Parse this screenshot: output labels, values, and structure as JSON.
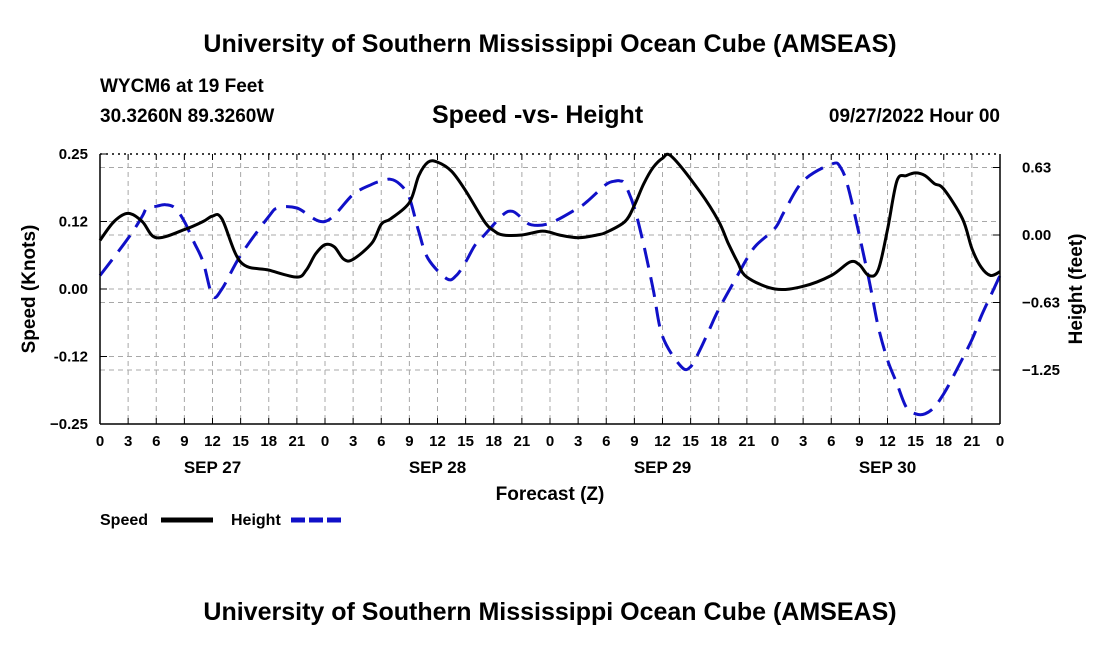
{
  "header": {
    "title": "University of Southern Mississippi Ocean Cube (AMSEAS)",
    "station": "WYCM6 at 19 Feet",
    "coords": "30.3260N  89.3260W",
    "subtitle": "Speed -vs- Height",
    "datetime": "09/27/2022 Hour 00"
  },
  "footer": {
    "title": "University of Southern Mississippi Ocean Cube (AMSEAS)"
  },
  "colors": {
    "speed": "#000000",
    "height": "#1010c8",
    "grid": "#a8a8a8"
  },
  "chart_data": {
    "type": "line",
    "xlabel": "Forecast (Z)",
    "ylabel": "Speed (Knots)",
    "y2label": "Height (feet)",
    "xlim": [
      0,
      96
    ],
    "ylim": [
      -0.25,
      0.25
    ],
    "y2lim": [
      -1.75,
      0.75
    ],
    "x_tick_labels": [
      "0",
      "3",
      "6",
      "9",
      "12",
      "15",
      "18",
      "21",
      "0",
      "3",
      "6",
      "9",
      "12",
      "15",
      "18",
      "21",
      "0",
      "3",
      "6",
      "9",
      "12",
      "15",
      "18",
      "21",
      "0",
      "3",
      "6",
      "9",
      "12",
      "15",
      "18",
      "21",
      "0"
    ],
    "date_labels": [
      {
        "label": "SEP 27",
        "x": 12
      },
      {
        "label": "SEP 28",
        "x": 36
      },
      {
        "label": "SEP 29",
        "x": 60
      },
      {
        "label": "SEP 30",
        "x": 84
      }
    ],
    "y_ticks": [
      {
        "value": 0.25,
        "label": "0.25"
      },
      {
        "value": 0.125,
        "label": "0.12"
      },
      {
        "value": 0.0,
        "label": "0.00"
      },
      {
        "value": -0.125,
        "label": "-0.12"
      },
      {
        "value": -0.25,
        "label": "−0.25"
      }
    ],
    "y2_ticks": [
      {
        "value": 0.625,
        "label": "0.63"
      },
      {
        "value": 0.0,
        "label": "0.00"
      },
      {
        "value": -0.625,
        "label": "−0.63"
      },
      {
        "value": -1.25,
        "label": "−1.25"
      }
    ],
    "legend": [
      {
        "name": "Speed",
        "style": "solid"
      },
      {
        "name": "Height",
        "style": "dashed"
      }
    ],
    "series": [
      {
        "name": "Speed",
        "axis": "left",
        "x": [
          0,
          1.5,
          3,
          4.5,
          6,
          9,
          11,
          12,
          13,
          15,
          18,
          21,
          22,
          23,
          24,
          25,
          26,
          27,
          29,
          30,
          31,
          33,
          34,
          35,
          36,
          37.5,
          39,
          41,
          42,
          43,
          45,
          47,
          48,
          49,
          51,
          53,
          54,
          56,
          57,
          58,
          59,
          60,
          61,
          64,
          66,
          67,
          68,
          69,
          72,
          75,
          78,
          80,
          81,
          82,
          83,
          84,
          85,
          86,
          87,
          88,
          89,
          90,
          92,
          93,
          94,
          95,
          96
        ],
        "y": [
          0.09,
          0.125,
          0.14,
          0.125,
          0.095,
          0.11,
          0.125,
          0.135,
          0.13,
          0.05,
          0.035,
          0.022,
          0.035,
          0.065,
          0.082,
          0.078,
          0.055,
          0.055,
          0.085,
          0.12,
          0.13,
          0.16,
          0.21,
          0.235,
          0.235,
          0.218,
          0.182,
          0.125,
          0.108,
          0.1,
          0.1,
          0.107,
          0.105,
          0.1,
          0.095,
          0.1,
          0.105,
          0.125,
          0.155,
          0.195,
          0.225,
          0.242,
          0.245,
          0.18,
          0.125,
          0.085,
          0.05,
          0.022,
          0.0,
          0.005,
          0.025,
          0.05,
          0.045,
          0.025,
          0.035,
          0.11,
          0.2,
          0.21,
          0.215,
          0.21,
          0.195,
          0.185,
          0.13,
          0.075,
          0.04,
          0.025,
          0.032
        ]
      },
      {
        "name": "Height",
        "axis": "right",
        "x": [
          0,
          3,
          4.5,
          5,
          6,
          7,
          8,
          9,
          10,
          11,
          12,
          13,
          15,
          18,
          19,
          21,
          24,
          27,
          29,
          30,
          31,
          32,
          33,
          34,
          35,
          37,
          38,
          39,
          40,
          41,
          43,
          44,
          45,
          46,
          48,
          51,
          52,
          54,
          55,
          55.5,
          56,
          57,
          58,
          59,
          60,
          62,
          63,
          64,
          65,
          66,
          68,
          69,
          70,
          72,
          73,
          75,
          78,
          79,
          80,
          82,
          83,
          84,
          85,
          86,
          87,
          88,
          89,
          90,
          91,
          93,
          94,
          95,
          96
        ],
        "y": [
          -0.375,
          -0.031,
          0.172,
          0.25,
          0.266,
          0.281,
          0.25,
          0.125,
          -0.063,
          -0.25,
          -0.563,
          -0.5,
          -0.188,
          0.172,
          0.25,
          0.25,
          0.125,
          0.375,
          0.469,
          0.5,
          0.516,
          0.469,
          0.344,
          0.031,
          -0.219,
          -0.406,
          -0.375,
          -0.25,
          -0.094,
          0.0,
          0.188,
          0.219,
          0.156,
          0.094,
          0.109,
          0.25,
          0.313,
          0.469,
          0.5,
          0.5,
          0.469,
          0.25,
          -0.094,
          -0.5,
          -0.938,
          -1.219,
          -1.219,
          -1.063,
          -0.875,
          -0.688,
          -0.375,
          -0.219,
          -0.094,
          0.063,
          0.219,
          0.5,
          0.656,
          0.625,
          0.375,
          -0.406,
          -0.844,
          -1.156,
          -1.375,
          -1.594,
          -1.656,
          -1.656,
          -1.594,
          -1.469,
          -1.313,
          -0.969,
          -0.75,
          -0.563,
          -0.375
        ]
      }
    ]
  }
}
